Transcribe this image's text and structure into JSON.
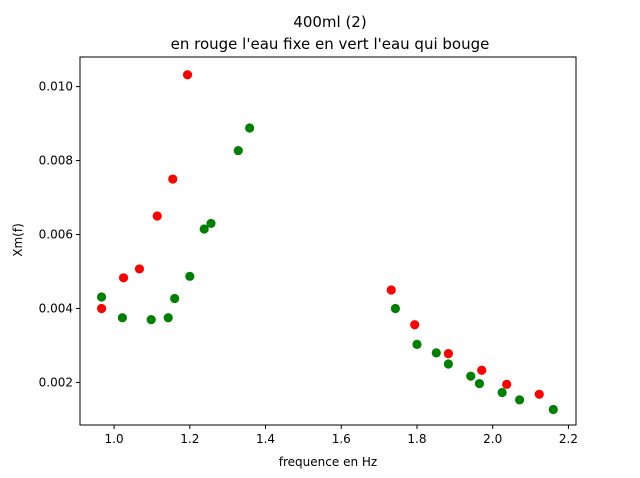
{
  "chart_data": {
    "type": "scatter",
    "title": "400ml (2)",
    "subtitle": "en rouge l'eau fixe en vert l'eau qui bouge",
    "xlabel": "frequence en Hz",
    "ylabel": "Xm(f)",
    "xlim": [
      0.91,
      2.22
    ],
    "ylim": [
      0.00085,
      0.0108
    ],
    "xticks": [
      1.0,
      1.2,
      1.4,
      1.6,
      1.8,
      2.0,
      2.2
    ],
    "xtick_labels": [
      "1.0",
      "1.2",
      "1.4",
      "1.6",
      "1.8",
      "2.0",
      "2.2"
    ],
    "yticks": [
      0.002,
      0.004,
      0.006,
      0.008,
      0.01
    ],
    "ytick_labels": [
      "0.002",
      "0.004",
      "0.006",
      "0.008",
      "0.010"
    ],
    "grid": false,
    "legend": "none",
    "series": [
      {
        "color": "#ff0000",
        "points": [
          {
            "x": 0.967,
            "y": 0.004
          },
          {
            "x": 1.025,
            "y": 0.00483
          },
          {
            "x": 1.067,
            "y": 0.00507
          },
          {
            "x": 1.114,
            "y": 0.0065
          },
          {
            "x": 1.155,
            "y": 0.0075
          },
          {
            "x": 1.194,
            "y": 0.01032
          },
          {
            "x": 1.732,
            "y": 0.0045
          },
          {
            "x": 1.794,
            "y": 0.00356
          },
          {
            "x": 1.883,
            "y": 0.00278
          },
          {
            "x": 1.971,
            "y": 0.00233
          },
          {
            "x": 2.037,
            "y": 0.00195
          },
          {
            "x": 2.123,
            "y": 0.00168
          }
        ]
      },
      {
        "color": "#008000",
        "points": [
          {
            "x": 0.967,
            "y": 0.00431
          },
          {
            "x": 1.022,
            "y": 0.00375
          },
          {
            "x": 1.098,
            "y": 0.0037
          },
          {
            "x": 1.143,
            "y": 0.00375
          },
          {
            "x": 1.16,
            "y": 0.00427
          },
          {
            "x": 1.2,
            "y": 0.00487
          },
          {
            "x": 1.238,
            "y": 0.00615
          },
          {
            "x": 1.256,
            "y": 0.0063
          },
          {
            "x": 1.328,
            "y": 0.00827
          },
          {
            "x": 1.358,
            "y": 0.00888
          },
          {
            "x": 1.743,
            "y": 0.004
          },
          {
            "x": 1.8,
            "y": 0.00303
          },
          {
            "x": 1.851,
            "y": 0.0028
          },
          {
            "x": 1.883,
            "y": 0.0025
          },
          {
            "x": 1.942,
            "y": 0.00217
          },
          {
            "x": 1.965,
            "y": 0.00197
          },
          {
            "x": 2.025,
            "y": 0.00173
          },
          {
            "x": 2.071,
            "y": 0.00153
          },
          {
            "x": 2.16,
            "y": 0.00127
          }
        ]
      }
    ]
  }
}
